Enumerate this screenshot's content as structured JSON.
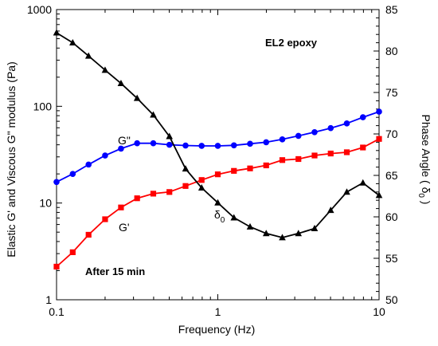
{
  "chart_data": {
    "type": "line",
    "title": "",
    "xlabel": "Frequency (Hz)",
    "ylabel_left": "Elastic G' and Viscous G\" modulus (Pa)",
    "ylabel_right_prefix": "Phase Angle ( δ",
    "ylabel_right_sub": "0",
    "ylabel_right_suffix": " )",
    "x_scale": "log",
    "xlim": [
      0.1,
      10
    ],
    "y_left_scale": "log",
    "ylim_left": [
      1,
      1000
    ],
    "y_right_scale": "linear",
    "ylim_right": [
      50,
      85
    ],
    "grid": false,
    "x_ticks": [
      {
        "value": 0.1,
        "label": "0.1"
      },
      {
        "value": 1,
        "label": "1"
      },
      {
        "value": 10,
        "label": "10"
      }
    ],
    "y_left_ticks": [
      {
        "value": 1,
        "label": "1"
      },
      {
        "value": 10,
        "label": "10"
      },
      {
        "value": 100,
        "label": "100"
      },
      {
        "value": 1000,
        "label": "1000"
      }
    ],
    "y_right_ticks": [
      {
        "value": 50,
        "label": "50"
      },
      {
        "value": 55,
        "label": "55"
      },
      {
        "value": 60,
        "label": "60"
      },
      {
        "value": 65,
        "label": "65"
      },
      {
        "value": 70,
        "label": "70"
      },
      {
        "value": 75,
        "label": "75"
      },
      {
        "value": 80,
        "label": "80"
      },
      {
        "value": 85,
        "label": "85"
      }
    ],
    "series": [
      {
        "name": "G\"",
        "axis": "left",
        "color": "#0000ff",
        "marker": "circle",
        "x": [
          0.1,
          0.126,
          0.158,
          0.2,
          0.251,
          0.316,
          0.398,
          0.501,
          0.631,
          0.794,
          1.0,
          1.259,
          1.585,
          1.995,
          2.512,
          3.162,
          3.981,
          5.012,
          6.31,
          7.943,
          10
        ],
        "y": [
          16.5,
          20,
          25,
          31,
          36.5,
          41.5,
          41.5,
          40,
          39.3,
          39,
          39,
          39.5,
          41,
          42.5,
          45.5,
          49.5,
          54,
          59.5,
          66.5,
          77,
          88
        ]
      },
      {
        "name": "G'",
        "axis": "left",
        "color": "#ff0000",
        "marker": "square",
        "x": [
          0.1,
          0.126,
          0.158,
          0.2,
          0.251,
          0.316,
          0.398,
          0.501,
          0.631,
          0.794,
          1.0,
          1.259,
          1.585,
          1.995,
          2.512,
          3.162,
          3.981,
          5.012,
          6.31,
          7.943,
          10
        ],
        "y": [
          2.2,
          3.1,
          4.7,
          6.8,
          9,
          11.2,
          12.5,
          13,
          15,
          17.3,
          19.8,
          21.5,
          22.8,
          24.5,
          27.8,
          28.5,
          31,
          32.5,
          33.5,
          37.5,
          46
        ]
      },
      {
        "name": "δ0",
        "axis": "right",
        "color": "#000000",
        "marker": "triangle",
        "x": [
          0.1,
          0.126,
          0.158,
          0.2,
          0.251,
          0.316,
          0.398,
          0.501,
          0.631,
          0.794,
          1.0,
          1.259,
          1.585,
          1.995,
          2.512,
          3.162,
          3.981,
          5.012,
          6.31,
          7.943,
          10
        ],
        "y": [
          82.2,
          81,
          79.4,
          77.7,
          76.1,
          74.3,
          72.3,
          69.7,
          65.8,
          63.5,
          61.7,
          59.9,
          58.8,
          58,
          57.5,
          58,
          58.6,
          60.8,
          63,
          64.1,
          62.6
        ]
      }
    ],
    "annotations": [
      {
        "text": "EL2 epoxy",
        "bold": true
      },
      {
        "text": "After 15 min",
        "bold": true
      },
      {
        "text": "G\"",
        "bold": false
      },
      {
        "text": "G'",
        "bold": false
      },
      {
        "text": "δ",
        "sub": "0",
        "bold": false
      }
    ]
  }
}
